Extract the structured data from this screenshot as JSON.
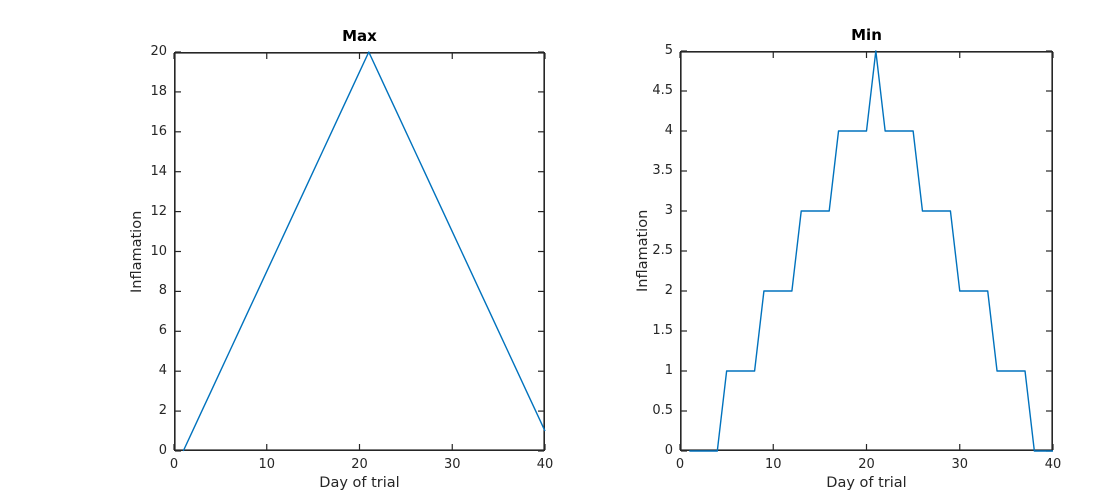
{
  "figure": {
    "background": "#ffffff"
  },
  "colors": {
    "line": "#0072bd",
    "axis": "#262626",
    "tick_label": "#262626",
    "title": "#000000"
  },
  "chart_data": [
    {
      "type": "line",
      "title": "Max",
      "xlabel": "Day of trial",
      "ylabel": "Inflamation",
      "xlim": [
        0,
        40
      ],
      "ylim": [
        0,
        20
      ],
      "xticks": [
        0,
        10,
        20,
        30,
        40
      ],
      "yticks": [
        0,
        2,
        4,
        6,
        8,
        10,
        12,
        14,
        16,
        18,
        20
      ],
      "grid": false,
      "legend": null,
      "x": [
        1,
        2,
        3,
        4,
        5,
        6,
        7,
        8,
        9,
        10,
        11,
        12,
        13,
        14,
        15,
        16,
        17,
        18,
        19,
        20,
        21,
        22,
        23,
        24,
        25,
        26,
        27,
        28,
        29,
        30,
        31,
        32,
        33,
        34,
        35,
        36,
        37,
        38,
        39,
        40
      ],
      "values": [
        0,
        1,
        2,
        3,
        4,
        5,
        6,
        7,
        8,
        9,
        10,
        11,
        12,
        13,
        14,
        15,
        16,
        17,
        18,
        19,
        20,
        19,
        18,
        17,
        16,
        15,
        14,
        13,
        12,
        11,
        10,
        9,
        8,
        7,
        6,
        5,
        4,
        3,
        2,
        1
      ]
    },
    {
      "type": "line",
      "title": "Min",
      "xlabel": "Day of trial",
      "ylabel": "Inflamation",
      "xlim": [
        0,
        40
      ],
      "ylim": [
        0,
        5
      ],
      "xticks": [
        0,
        10,
        20,
        30,
        40
      ],
      "yticks": [
        0,
        0.5,
        1,
        1.5,
        2,
        2.5,
        3,
        3.5,
        4,
        4.5,
        5
      ],
      "grid": false,
      "legend": null,
      "x": [
        1,
        2,
        3,
        4,
        5,
        6,
        7,
        8,
        9,
        10,
        11,
        12,
        13,
        14,
        15,
        16,
        17,
        18,
        19,
        20,
        21,
        22,
        23,
        24,
        25,
        26,
        27,
        28,
        29,
        30,
        31,
        32,
        33,
        34,
        35,
        36,
        37,
        38,
        39,
        40
      ],
      "values": [
        0,
        0,
        0,
        0,
        1,
        1,
        1,
        1,
        2,
        2,
        2,
        2,
        3,
        3,
        3,
        3,
        4,
        4,
        4,
        4,
        5,
        4,
        4,
        4,
        4,
        3,
        3,
        3,
        3,
        2,
        2,
        2,
        2,
        1,
        1,
        1,
        1,
        0,
        0,
        0
      ]
    }
  ]
}
